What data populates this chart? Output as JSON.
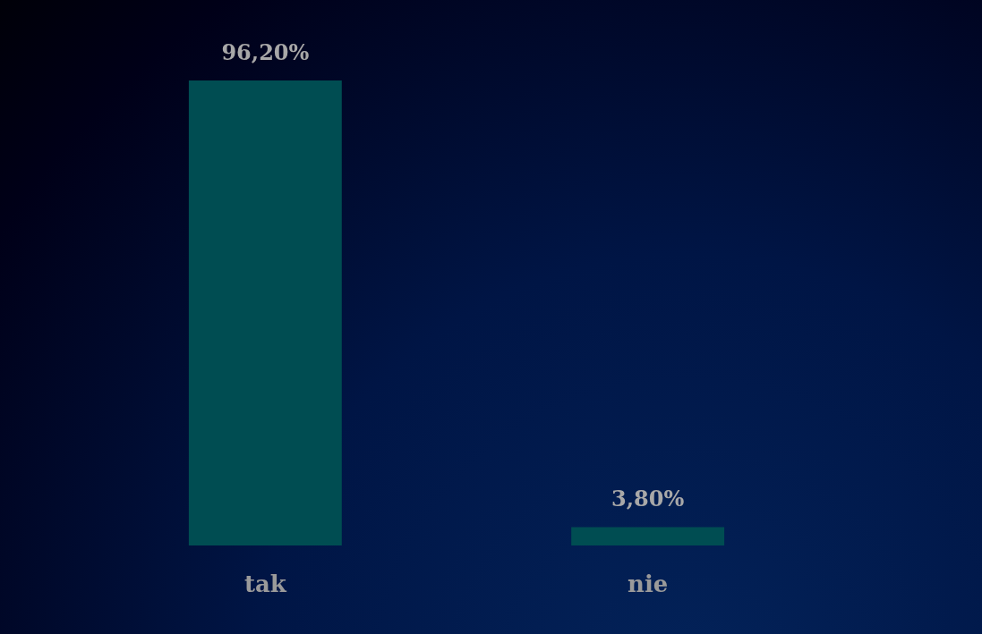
{
  "chart_data": {
    "type": "bar",
    "categories": [
      "tak",
      "nie"
    ],
    "values": [
      96.2,
      3.8
    ],
    "value_labels": [
      "96,20%",
      "3,80%"
    ],
    "color": "#004d52"
  }
}
